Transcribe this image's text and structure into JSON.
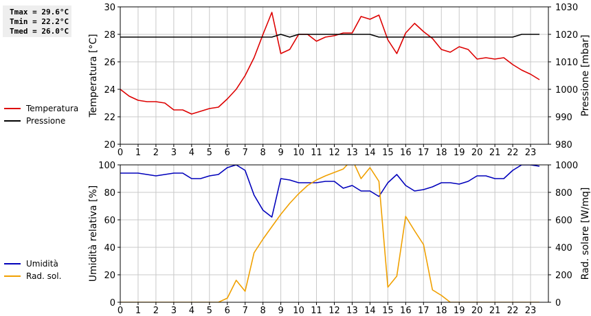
{
  "stats": {
    "tmax": "Tmax = 29.6°C",
    "tmin": "Tmin = 22.2°C",
    "tmed": "Tmed = 26.0°C"
  },
  "colors": {
    "temperature": "#dd0000",
    "pressure": "#000000",
    "humidity": "#0000bb",
    "solar": "#f0a000",
    "grid": "#c8c8c8"
  },
  "chart_data": [
    {
      "type": "line",
      "x_ticks": [
        "0",
        "1",
        "2",
        "3",
        "4",
        "5",
        "6",
        "7",
        "8",
        "9",
        "10",
        "11",
        "12",
        "13",
        "14",
        "15",
        "16",
        "17",
        "18",
        "19",
        "20",
        "21",
        "22",
        "23"
      ],
      "xlim": [
        0,
        24
      ],
      "ylabel": "Temperatura [°C]",
      "ylim": [
        20,
        30
      ],
      "y_ticks": [
        "20",
        "22",
        "24",
        "26",
        "28",
        "30"
      ],
      "y2label": "Pressione [mbar]",
      "y2lim": [
        980,
        1030
      ],
      "y2_ticks": [
        "980",
        "990",
        "1000",
        "1010",
        "1020",
        "1030"
      ],
      "grid": true,
      "legend_position": "left",
      "series": [
        {
          "name": "Temperatura",
          "axis": "left",
          "color_key": "temperature",
          "x": [
            0,
            0.5,
            1,
            1.5,
            2,
            2.5,
            3,
            3.5,
            4,
            4.5,
            5,
            5.5,
            6,
            6.5,
            7,
            7.5,
            8,
            8.5,
            9,
            9.5,
            10,
            10.5,
            11,
            11.5,
            12,
            12.5,
            13,
            13.5,
            14,
            14.5,
            15,
            15.5,
            16,
            16.5,
            17,
            17.5,
            18,
            18.5,
            19,
            19.5,
            20,
            20.5,
            21,
            21.5,
            22,
            22.5,
            23,
            23.5
          ],
          "values": [
            24.0,
            23.5,
            23.2,
            23.1,
            23.1,
            23.0,
            22.5,
            22.5,
            22.2,
            22.4,
            22.6,
            22.7,
            23.3,
            24.0,
            25.0,
            26.3,
            28.0,
            29.6,
            26.6,
            26.9,
            28.0,
            28.0,
            27.5,
            27.8,
            27.9,
            28.1,
            28.1,
            29.3,
            29.1,
            29.4,
            27.6,
            26.6,
            28.1,
            28.8,
            28.2,
            27.7,
            26.9,
            26.7,
            27.1,
            26.9,
            26.2,
            26.3,
            26.2,
            26.3,
            25.8,
            25.4,
            25.1,
            24.7
          ]
        },
        {
          "name": "Pressione",
          "axis": "right",
          "color_key": "pressure",
          "x": [
            0,
            1,
            2,
            3,
            4,
            5,
            6,
            7,
            8,
            8.5,
            9,
            9.5,
            10,
            11,
            12,
            13,
            14,
            14.5,
            15,
            16,
            17,
            18,
            19,
            20,
            21,
            22,
            22.5,
            23,
            23.5
          ],
          "values": [
            1019,
            1019,
            1019,
            1019,
            1019,
            1019,
            1019,
            1019,
            1019,
            1019,
            1020,
            1019,
            1020,
            1020,
            1020,
            1020,
            1020,
            1019,
            1019,
            1019,
            1019,
            1019,
            1019,
            1019,
            1019,
            1019,
            1020,
            1020,
            1020
          ]
        }
      ]
    },
    {
      "type": "line",
      "x_ticks": [
        "0",
        "1",
        "2",
        "3",
        "4",
        "5",
        "6",
        "7",
        "8",
        "9",
        "10",
        "11",
        "12",
        "13",
        "14",
        "15",
        "16",
        "17",
        "18",
        "19",
        "20",
        "21",
        "22",
        "23"
      ],
      "xlim": [
        0,
        24
      ],
      "ylabel": "Umidità relativa [%]",
      "ylim": [
        0,
        100
      ],
      "y_ticks": [
        "0",
        "20",
        "40",
        "60",
        "80",
        "100"
      ],
      "y2label": "Rad. solare [W/mq]",
      "y2lim": [
        0,
        1000
      ],
      "y2_ticks": [
        "0",
        "200",
        "400",
        "600",
        "800",
        "1000"
      ],
      "grid": true,
      "legend_position": "left",
      "series": [
        {
          "name": "Umidità",
          "axis": "left",
          "color_key": "humidity",
          "x": [
            0,
            0.5,
            1,
            1.5,
            2,
            2.5,
            3,
            3.5,
            4,
            4.5,
            5,
            5.5,
            6,
            6.5,
            7,
            7.5,
            8,
            8.5,
            9,
            9.5,
            10,
            10.5,
            11,
            11.5,
            12,
            12.5,
            13,
            13.5,
            14,
            14.5,
            15,
            15.5,
            16,
            16.5,
            17,
            17.5,
            18,
            18.5,
            19,
            19.5,
            20,
            20.5,
            21,
            21.5,
            22,
            22.5,
            23,
            23.5
          ],
          "values": [
            94,
            94,
            94,
            93,
            92,
            93,
            94,
            94,
            90,
            90,
            92,
            93,
            98,
            100,
            96,
            78,
            67,
            62,
            90,
            89,
            87,
            87,
            87,
            88,
            88,
            83,
            85,
            81,
            81,
            77,
            87,
            93,
            85,
            81,
            82,
            84,
            87,
            87,
            86,
            88,
            92,
            92,
            90,
            90,
            96,
            100,
            100,
            99
          ]
        },
        {
          "name": "Rad. sol.",
          "axis": "right",
          "color_key": "solar",
          "x": [
            0,
            0.5,
            1,
            1.5,
            2,
            2.5,
            3,
            3.5,
            4,
            4.5,
            5,
            5.5,
            6,
            6.5,
            7,
            7.5,
            8,
            8.5,
            9,
            9.5,
            10,
            10.5,
            11,
            11.5,
            12,
            12.5,
            13,
            13.5,
            14,
            14.5,
            15,
            15.5,
            16,
            16.5,
            17,
            17.5,
            18,
            18.5,
            19,
            19.5,
            20,
            20.5,
            21,
            21.5,
            22,
            22.5,
            23,
            23.5
          ],
          "values": [
            0,
            0,
            0,
            0,
            0,
            0,
            0,
            0,
            0,
            0,
            0,
            0,
            30,
            160,
            80,
            360,
            460,
            550,
            640,
            720,
            790,
            850,
            890,
            920,
            945,
            970,
            1040,
            900,
            980,
            880,
            110,
            190,
            625,
            520,
            420,
            90,
            50,
            0,
            0,
            0,
            0,
            0,
            0,
            0,
            0,
            0,
            0,
            0
          ]
        }
      ]
    }
  ]
}
